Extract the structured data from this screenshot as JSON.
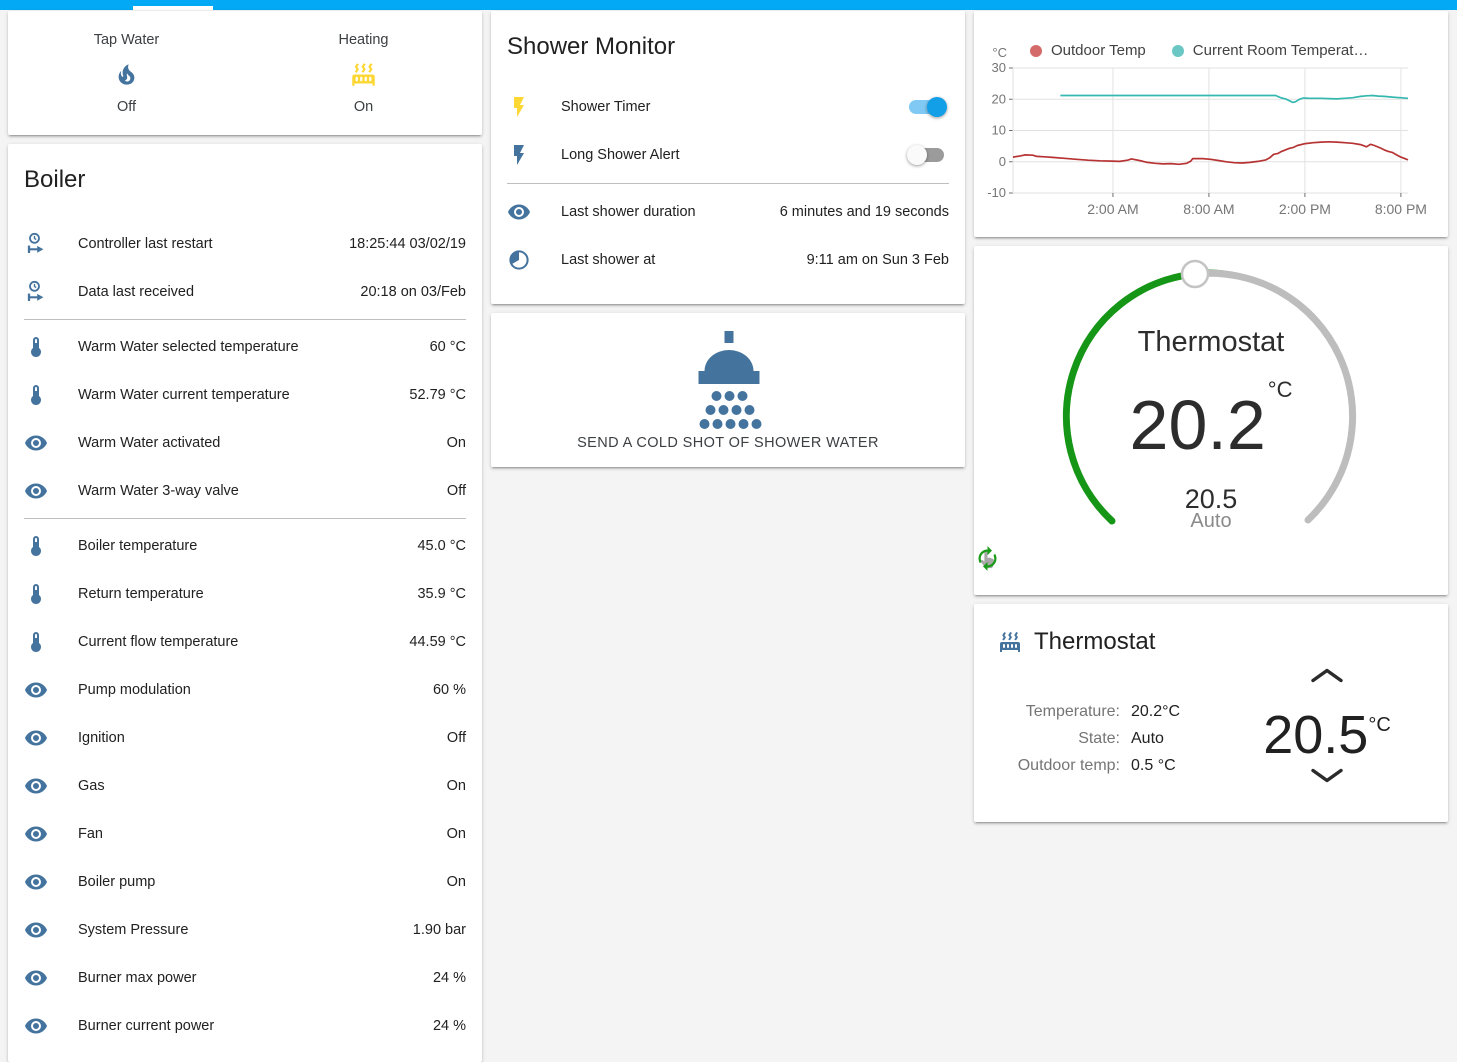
{
  "header": {
    "bar_color": "#03a9f4"
  },
  "glance_card": {
    "items": [
      {
        "name": "tap-water",
        "label": "Tap Water",
        "state": "Off",
        "icon": "fire",
        "icon_color": "#44739e"
      },
      {
        "name": "heating",
        "label": "Heating",
        "state": "On",
        "icon": "radiator",
        "icon_color": "#fdd835"
      }
    ]
  },
  "boiler_card": {
    "title": "Boiler",
    "sections": [
      [
        {
          "icon": "clock-start",
          "label": "Controller last restart",
          "value": "18:25:44 03/02/19"
        },
        {
          "icon": "clock-start",
          "label": "Data last received",
          "value": "20:18 on 03/Feb"
        }
      ],
      [
        {
          "icon": "thermometer",
          "label": "Warm Water selected temperature",
          "value": "60 °C"
        },
        {
          "icon": "thermometer",
          "label": "Warm Water current temperature",
          "value": "52.79 °C"
        },
        {
          "icon": "eye",
          "label": "Warm Water activated",
          "value": "On"
        },
        {
          "icon": "eye",
          "label": "Warm Water 3-way valve",
          "value": "Off"
        }
      ],
      [
        {
          "icon": "thermometer",
          "label": "Boiler temperature",
          "value": "45.0 °C"
        },
        {
          "icon": "thermometer",
          "label": "Return temperature",
          "value": "35.9 °C"
        },
        {
          "icon": "thermometer",
          "label": "Current flow temperature",
          "value": "44.59 °C"
        },
        {
          "icon": "eye",
          "label": "Pump modulation",
          "value": "60 %"
        },
        {
          "icon": "eye",
          "label": "Ignition",
          "value": "Off"
        },
        {
          "icon": "eye",
          "label": "Gas",
          "value": "On"
        },
        {
          "icon": "eye",
          "label": "Fan",
          "value": "On"
        },
        {
          "icon": "eye",
          "label": "Boiler pump",
          "value": "On"
        },
        {
          "icon": "eye",
          "label": "System Pressure",
          "value": "1.90 bar"
        },
        {
          "icon": "eye",
          "label": "Burner max power",
          "value": "24 %"
        },
        {
          "icon": "eye",
          "label": "Burner current power",
          "value": "24 %"
        }
      ]
    ]
  },
  "shower_card": {
    "title": "Shower Monitor",
    "toggles": [
      {
        "icon": "flash",
        "icon_color": "#fdd835",
        "label": "Shower Timer",
        "on": true
      },
      {
        "icon": "flash",
        "icon_color": "#44739e",
        "label": "Long Shower Alert",
        "on": false
      }
    ],
    "info_rows": [
      {
        "icon": "eye",
        "label": "Last shower duration",
        "value": "6 minutes and 19 seconds"
      },
      {
        "icon": "clock",
        "label": "Last shower at",
        "value": "9:11 am on Sun 3 Feb"
      }
    ]
  },
  "shower_button_card": {
    "label": "SEND A COLD SHOT OF SHOWER WATER",
    "icon": "shower-head",
    "icon_color": "#44739e"
  },
  "chart_data": {
    "type": "line",
    "title": "",
    "ylabel": "°C",
    "ylim": [
      -10,
      30
    ],
    "y_ticks": [
      30,
      20,
      10,
      0,
      -10
    ],
    "x_ticks": [
      {
        "pct": 25.3,
        "label": "2:00 AM"
      },
      {
        "pct": 49.6,
        "label": "8:00 AM"
      },
      {
        "pct": 73.9,
        "label": "2:00 PM"
      },
      {
        "pct": 98.2,
        "label": "8:00 PM"
      }
    ],
    "grid": true,
    "legend_position": "top",
    "series": [
      {
        "name": "Outdoor Temp",
        "line_color": "#b73333",
        "legend_color": "#d56a6a",
        "points": [
          [
            0,
            1.5
          ],
          [
            2,
            1.9
          ],
          [
            3,
            2.2
          ],
          [
            5,
            2.1
          ],
          [
            6,
            1.7
          ],
          [
            8,
            1.6
          ],
          [
            10,
            1.4
          ],
          [
            13,
            1.1
          ],
          [
            16,
            0.8
          ],
          [
            19,
            0.5
          ],
          [
            22,
            0.3
          ],
          [
            25,
            0.2
          ],
          [
            27,
            0.1
          ],
          [
            29,
            0.5
          ],
          [
            30,
            0.9
          ],
          [
            32,
            0.4
          ],
          [
            34,
            -0.2
          ],
          [
            36,
            -0.5
          ],
          [
            38,
            -0.7
          ],
          [
            40,
            -0.6
          ],
          [
            42,
            -0.8
          ],
          [
            44,
            -0.5
          ],
          [
            45,
            0.2
          ],
          [
            45.5,
            1.0
          ],
          [
            48,
            1.0
          ],
          [
            50,
            0.8
          ],
          [
            52,
            0.4
          ],
          [
            54,
            0.0
          ],
          [
            56,
            -0.3
          ],
          [
            58,
            -0.4
          ],
          [
            60,
            -0.2
          ],
          [
            62,
            0.1
          ],
          [
            64,
            0.6
          ],
          [
            65,
            1.3
          ],
          [
            66,
            2.4
          ],
          [
            67,
            2.6
          ],
          [
            68,
            3.3
          ],
          [
            70,
            4.3
          ],
          [
            71,
            4.6
          ],
          [
            72,
            5.2
          ],
          [
            74,
            5.8
          ],
          [
            76,
            6.1
          ],
          [
            78,
            6.3
          ],
          [
            80,
            6.4
          ],
          [
            82,
            6.3
          ],
          [
            84,
            6.1
          ],
          [
            86,
            5.9
          ],
          [
            88,
            5.5
          ],
          [
            89.5,
            4.8
          ],
          [
            90.5,
            5.6
          ],
          [
            91.5,
            5.2
          ],
          [
            93,
            4.4
          ],
          [
            94,
            3.8
          ],
          [
            95,
            3.3
          ],
          [
            96,
            3.0
          ],
          [
            97,
            2.3
          ],
          [
            98,
            1.6
          ],
          [
            99,
            1.1
          ],
          [
            100,
            0.6
          ]
        ]
      },
      {
        "name": "Current Room Temperat…",
        "line_color": "#35b8b0",
        "legend_color": "#6ac7c3",
        "points": [
          [
            12,
            21.2
          ],
          [
            30,
            21.2
          ],
          [
            50,
            21.2
          ],
          [
            66.5,
            21.2
          ],
          [
            67,
            20.9
          ],
          [
            68,
            20.4
          ],
          [
            69,
            20.1
          ],
          [
            70,
            19.5
          ],
          [
            70.8,
            19.0
          ],
          [
            71.5,
            19.2
          ],
          [
            72.5,
            20.0
          ],
          [
            73.5,
            20.4
          ],
          [
            75,
            20.3
          ],
          [
            78,
            20.3
          ],
          [
            80,
            20.2
          ],
          [
            82,
            20.1
          ],
          [
            84,
            20.3
          ],
          [
            86,
            20.5
          ],
          [
            88,
            20.9
          ],
          [
            89.5,
            21.1
          ],
          [
            91,
            21.2
          ],
          [
            92.5,
            21.0
          ],
          [
            94,
            20.9
          ],
          [
            96,
            20.7
          ],
          [
            98,
            20.5
          ],
          [
            100,
            20.3
          ]
        ]
      }
    ]
  },
  "dial_card": {
    "title": "Thermostat",
    "current_temp": "20.2",
    "unit": "°C",
    "target_temp": "20.5",
    "mode": "Auto",
    "colors": {
      "active_arc": "#169616",
      "inactive_arc": "#bdbdbd"
    },
    "mode_buttons": [
      {
        "icon": "hand",
        "color": "#a8a8a8",
        "name": "manual-mode"
      },
      {
        "icon": "autorenew",
        "color": "#1a9c1a",
        "name": "auto-mode"
      }
    ]
  },
  "thermostat_card": {
    "title": "Thermostat",
    "icon": "radiator",
    "icon_color": "#44739e",
    "info_rows": [
      {
        "label": "Temperature:",
        "value": "20.2°C"
      },
      {
        "label": "State:",
        "value": "Auto"
      },
      {
        "label": "Outdoor temp:",
        "value": "0.5 °C"
      }
    ],
    "target_temp": "20.5",
    "unit": "°C"
  }
}
